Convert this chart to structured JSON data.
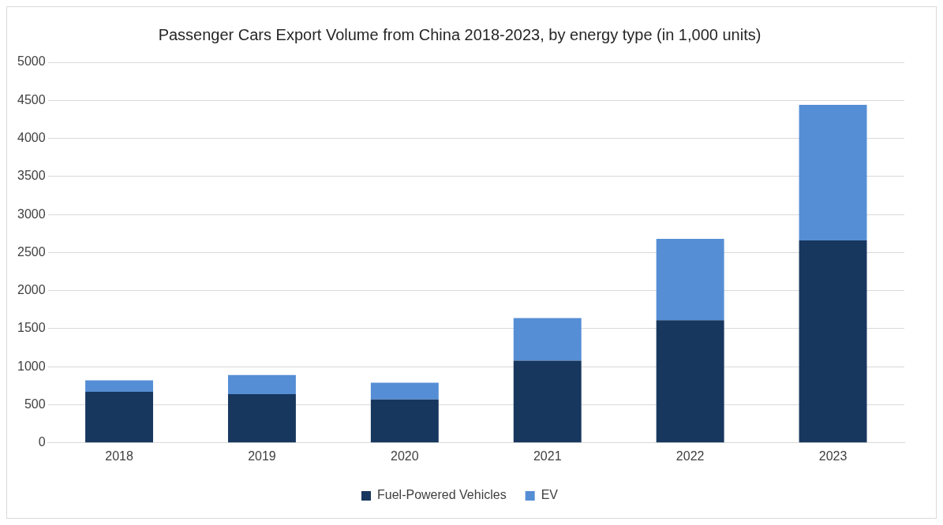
{
  "chart_data": {
    "type": "bar",
    "title": "Passenger Cars Export Volume from China 2018-2023, by energy type (in 1,000 units)",
    "categories": [
      "2018",
      "2019",
      "2020",
      "2021",
      "2022",
      "2023"
    ],
    "series": [
      {
        "name": "Fuel-Powered Vehicles",
        "color": "#17375e",
        "values": [
          670,
          640,
          570,
          1080,
          1610,
          2660
        ]
      },
      {
        "name": "EV",
        "color": "#558ed5",
        "values": [
          150,
          250,
          220,
          560,
          1070,
          1780
        ]
      }
    ],
    "stacked": true,
    "ylim": [
      0,
      5000
    ],
    "yticks": [
      0,
      500,
      1000,
      1500,
      2000,
      2500,
      3000,
      3500,
      4000,
      4500,
      5000
    ],
    "grid": "y",
    "legend": "bottom"
  }
}
